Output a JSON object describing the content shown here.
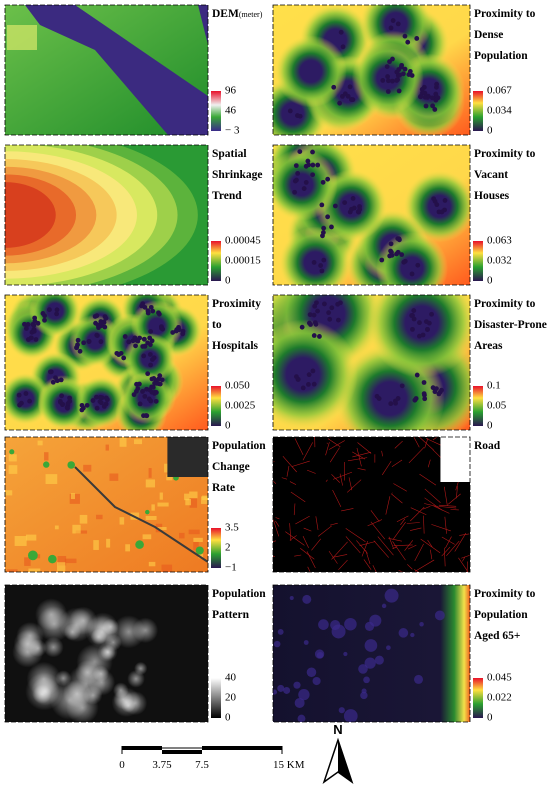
{
  "panels": [
    {
      "title_lines": [
        "DEM"
      ],
      "unit": "(meter)",
      "legend": [
        "96",
        "46",
        "− 3"
      ]
    },
    {
      "title_lines": [
        "Proximity to",
        "Dense",
        "Population"
      ],
      "legend": [
        "0.067",
        "0.034",
        "0"
      ]
    },
    {
      "title_lines": [
        "Spatial",
        "Shrinkage",
        "Trend"
      ],
      "legend": [
        "0.00045",
        "0.00015",
        "0"
      ]
    },
    {
      "title_lines": [
        "Proximity to",
        "Vacant",
        "Houses"
      ],
      "legend": [
        "0.063",
        "0.032",
        "0"
      ]
    },
    {
      "title_lines": [
        "Proximity",
        "to",
        "Hospitals"
      ],
      "legend": [
        "0.050",
        "0.0025",
        "0"
      ]
    },
    {
      "title_lines": [
        "Proximity to",
        "Disaster-Prone",
        "Areas"
      ],
      "legend": [
        "0.1",
        "0.05",
        "0"
      ]
    },
    {
      "title_lines": [
        "Population",
        "Change",
        "Rate"
      ],
      "legend": [
        "3.5",
        "2",
        "−1"
      ]
    },
    {
      "title_lines": [
        "Road"
      ],
      "legend": []
    },
    {
      "title_lines": [
        "Population",
        "Pattern"
      ],
      "legend": [
        "40",
        "20",
        "0"
      ]
    },
    {
      "title_lines": [
        "Proximity to",
        "Population",
        "Aged 65+"
      ],
      "legend": [
        "0.045",
        "0.022",
        "0"
      ]
    }
  ],
  "scale_bar": {
    "labels": [
      "0",
      "3.75",
      "7.5",
      "15 KM"
    ]
  },
  "north_arrow": {
    "label": "N"
  }
}
